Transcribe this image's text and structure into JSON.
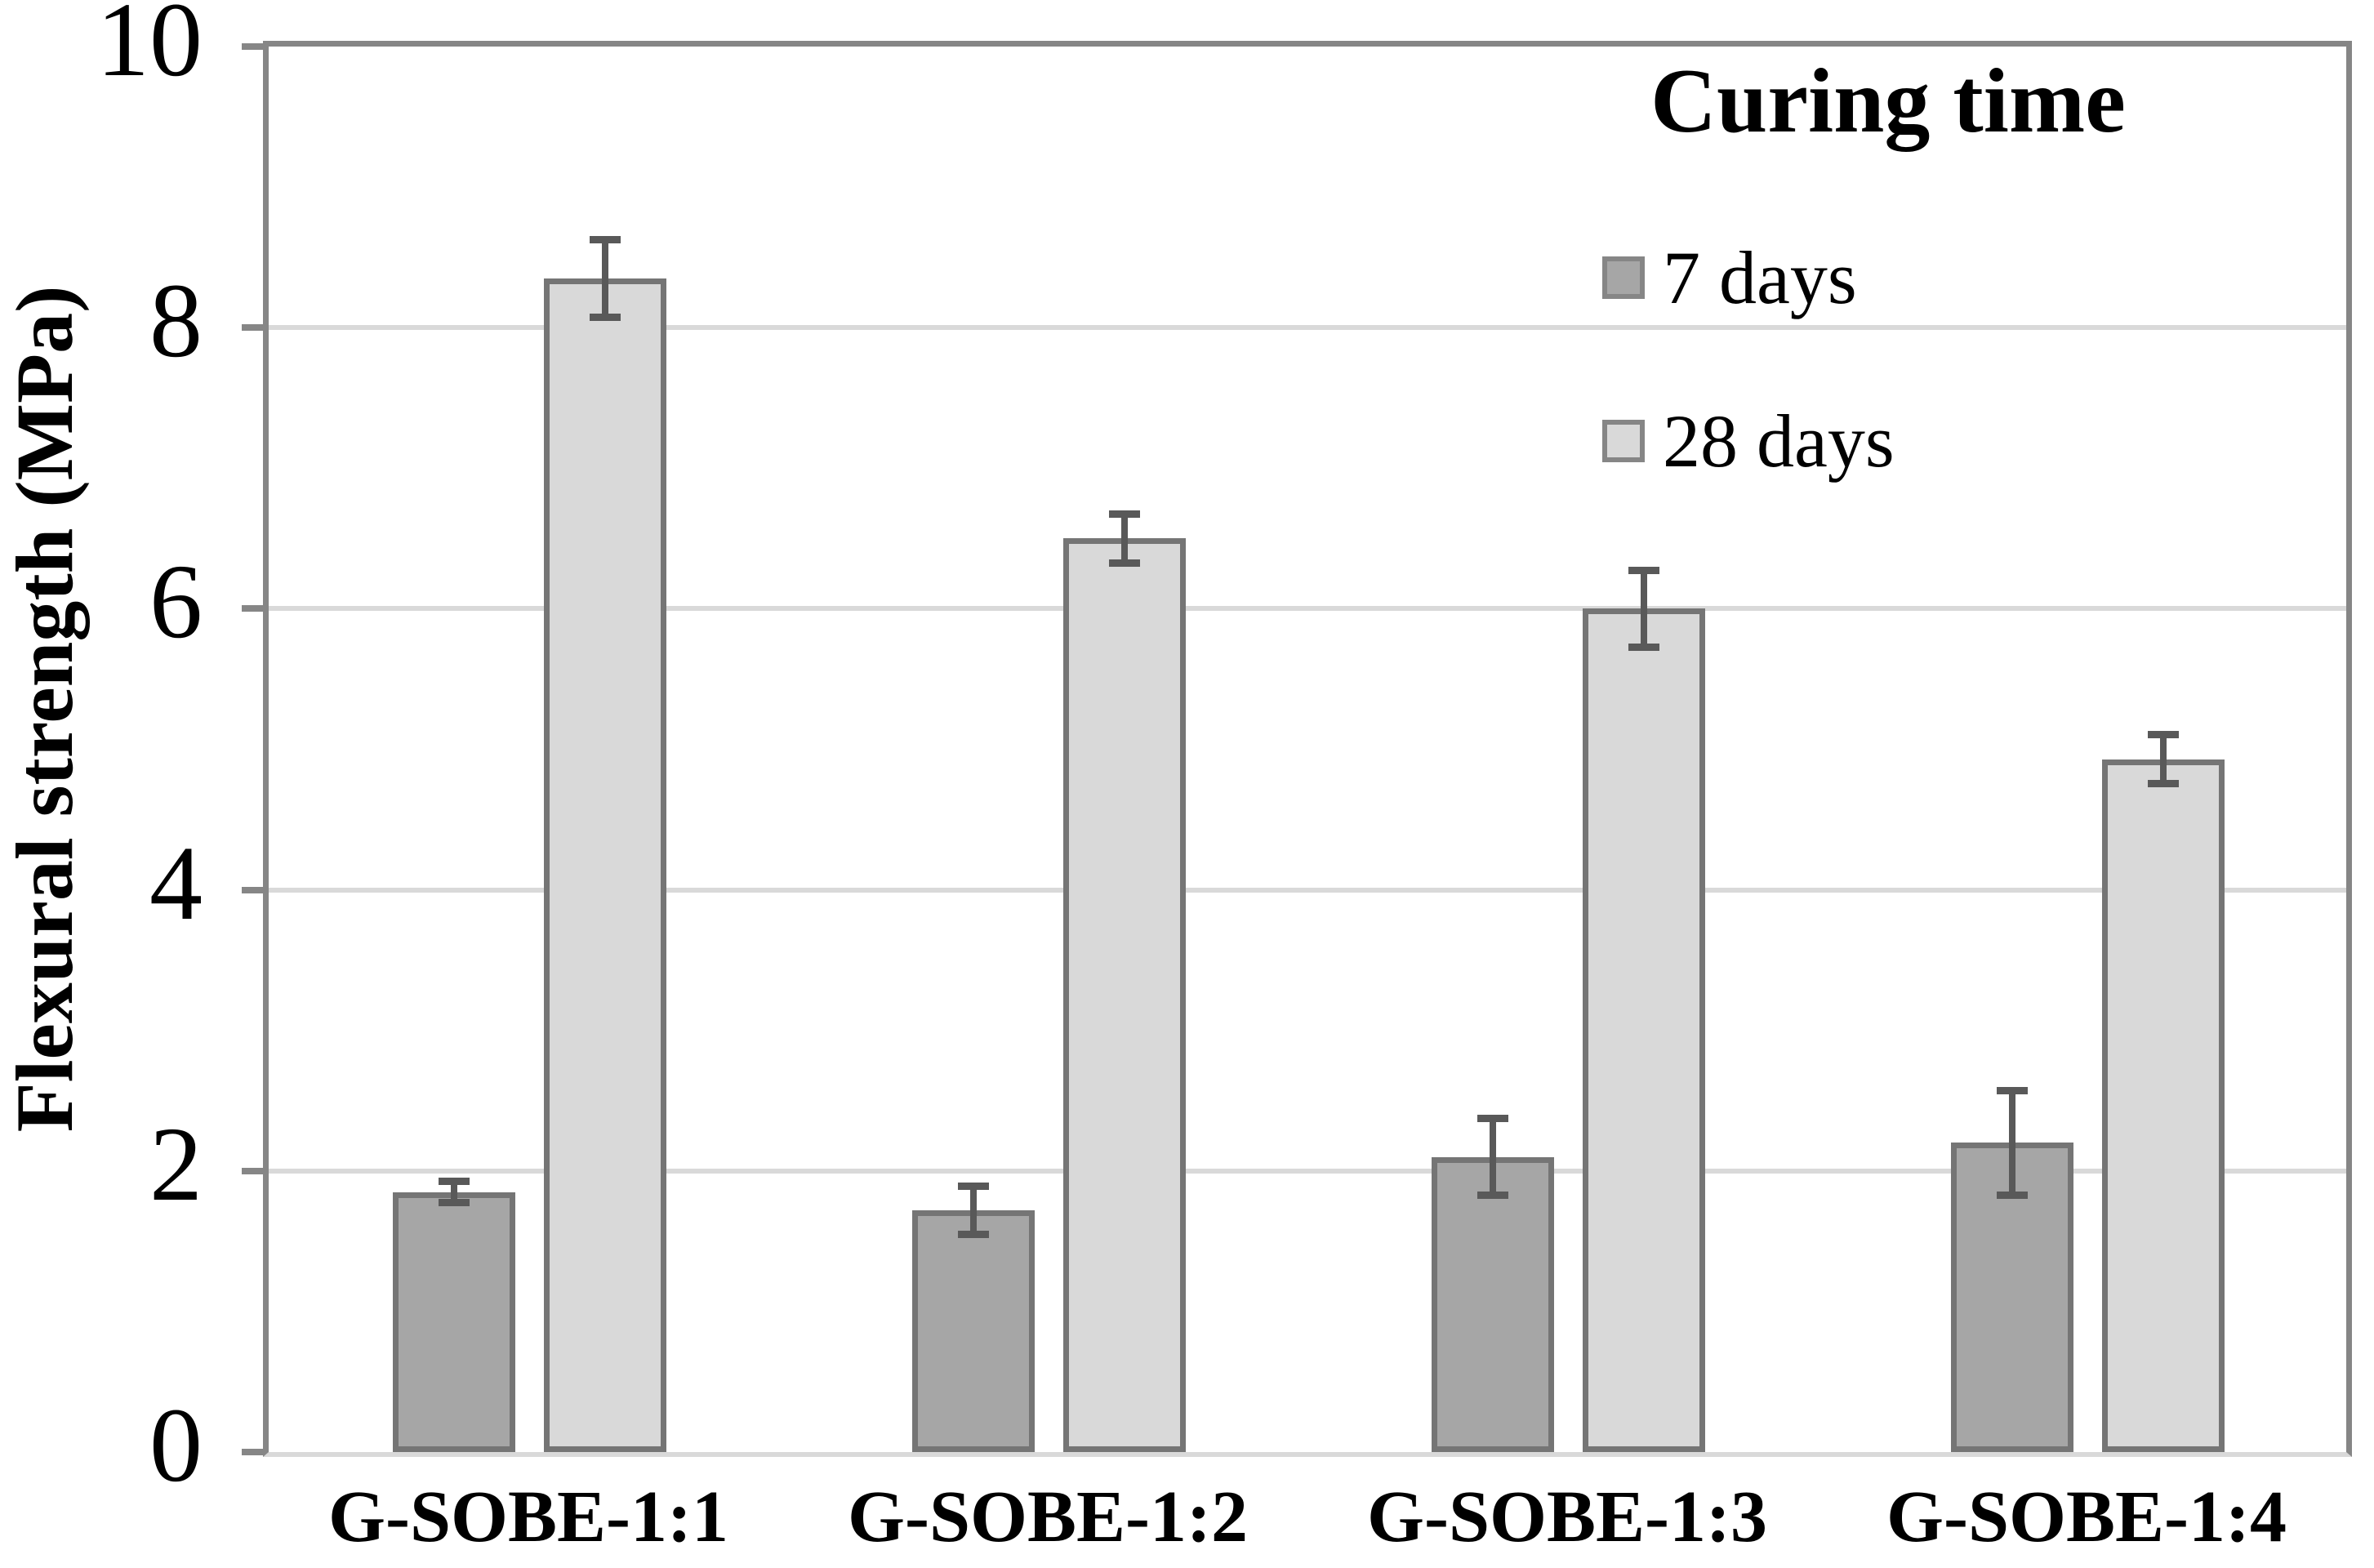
{
  "chart_data": {
    "type": "bar",
    "title": "",
    "ylabel": "Flexural strength (MPa)",
    "ylim": [
      0,
      10
    ],
    "yticks": [
      0,
      2,
      4,
      6,
      8,
      10
    ],
    "grid": "horizontal-light",
    "legend_title": "Curing time",
    "legend_position": "top-right-inside",
    "categories": [
      "G-SOBE-1:1",
      "G-SOBE-1:2",
      "G-SOBE-1:3",
      "G-SOBE-1:4"
    ],
    "series": [
      {
        "name": "7 days",
        "fill_color": "#a6a6a6",
        "border_color": "#757575",
        "values": [
          1.85,
          1.72,
          2.1,
          2.2
        ],
        "errors": [
          0.1,
          0.2,
          0.3,
          0.4
        ]
      },
      {
        "name": "28 days",
        "fill_color": "#d9d9d9",
        "border_color": "#757575",
        "values": [
          8.35,
          6.5,
          6.0,
          4.93
        ],
        "errors": [
          0.3,
          0.2,
          0.3,
          0.2
        ]
      }
    ],
    "error_bar_color": "#595959",
    "axis_color": "#868686",
    "gridline_color": "#d9d9d9"
  }
}
